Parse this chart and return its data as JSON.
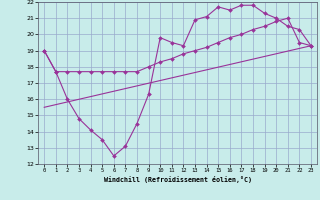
{
  "xlabel": "Windchill (Refroidissement éolien,°C)",
  "bg_color": "#c8ecea",
  "grid_color": "#99aacc",
  "line_color": "#993399",
  "xlim": [
    -0.5,
    23.5
  ],
  "ylim": [
    12,
    22
  ],
  "xticks": [
    0,
    1,
    2,
    3,
    4,
    5,
    6,
    7,
    8,
    9,
    10,
    11,
    12,
    13,
    14,
    15,
    16,
    17,
    18,
    19,
    20,
    21,
    22,
    23
  ],
  "yticks": [
    12,
    13,
    14,
    15,
    16,
    17,
    18,
    19,
    20,
    21,
    22
  ],
  "line1_x": [
    0,
    1,
    2,
    3,
    4,
    5,
    6,
    7,
    8,
    9,
    10,
    11,
    12,
    13,
    14,
    15,
    16,
    17,
    18,
    19,
    20,
    21,
    22,
    23
  ],
  "line1_y": [
    19.0,
    17.7,
    16.0,
    14.8,
    14.1,
    13.5,
    12.5,
    13.1,
    14.5,
    16.3,
    19.8,
    19.5,
    19.3,
    20.9,
    21.1,
    21.7,
    21.5,
    21.8,
    21.8,
    21.3,
    21.0,
    20.5,
    20.3,
    19.3
  ],
  "line2_x": [
    0,
    1,
    2,
    3,
    4,
    5,
    6,
    7,
    8,
    9,
    10,
    11,
    12,
    13,
    14,
    15,
    16,
    17,
    18,
    19,
    20,
    21,
    22,
    23
  ],
  "line2_y": [
    19.0,
    17.7,
    17.7,
    17.7,
    17.7,
    17.7,
    17.7,
    17.7,
    17.7,
    18.0,
    18.3,
    18.5,
    18.8,
    19.0,
    19.2,
    19.5,
    19.8,
    20.0,
    20.3,
    20.5,
    20.8,
    21.0,
    19.5,
    19.3
  ],
  "line3_x": [
    0,
    23
  ],
  "line3_y": [
    15.5,
    19.3
  ]
}
